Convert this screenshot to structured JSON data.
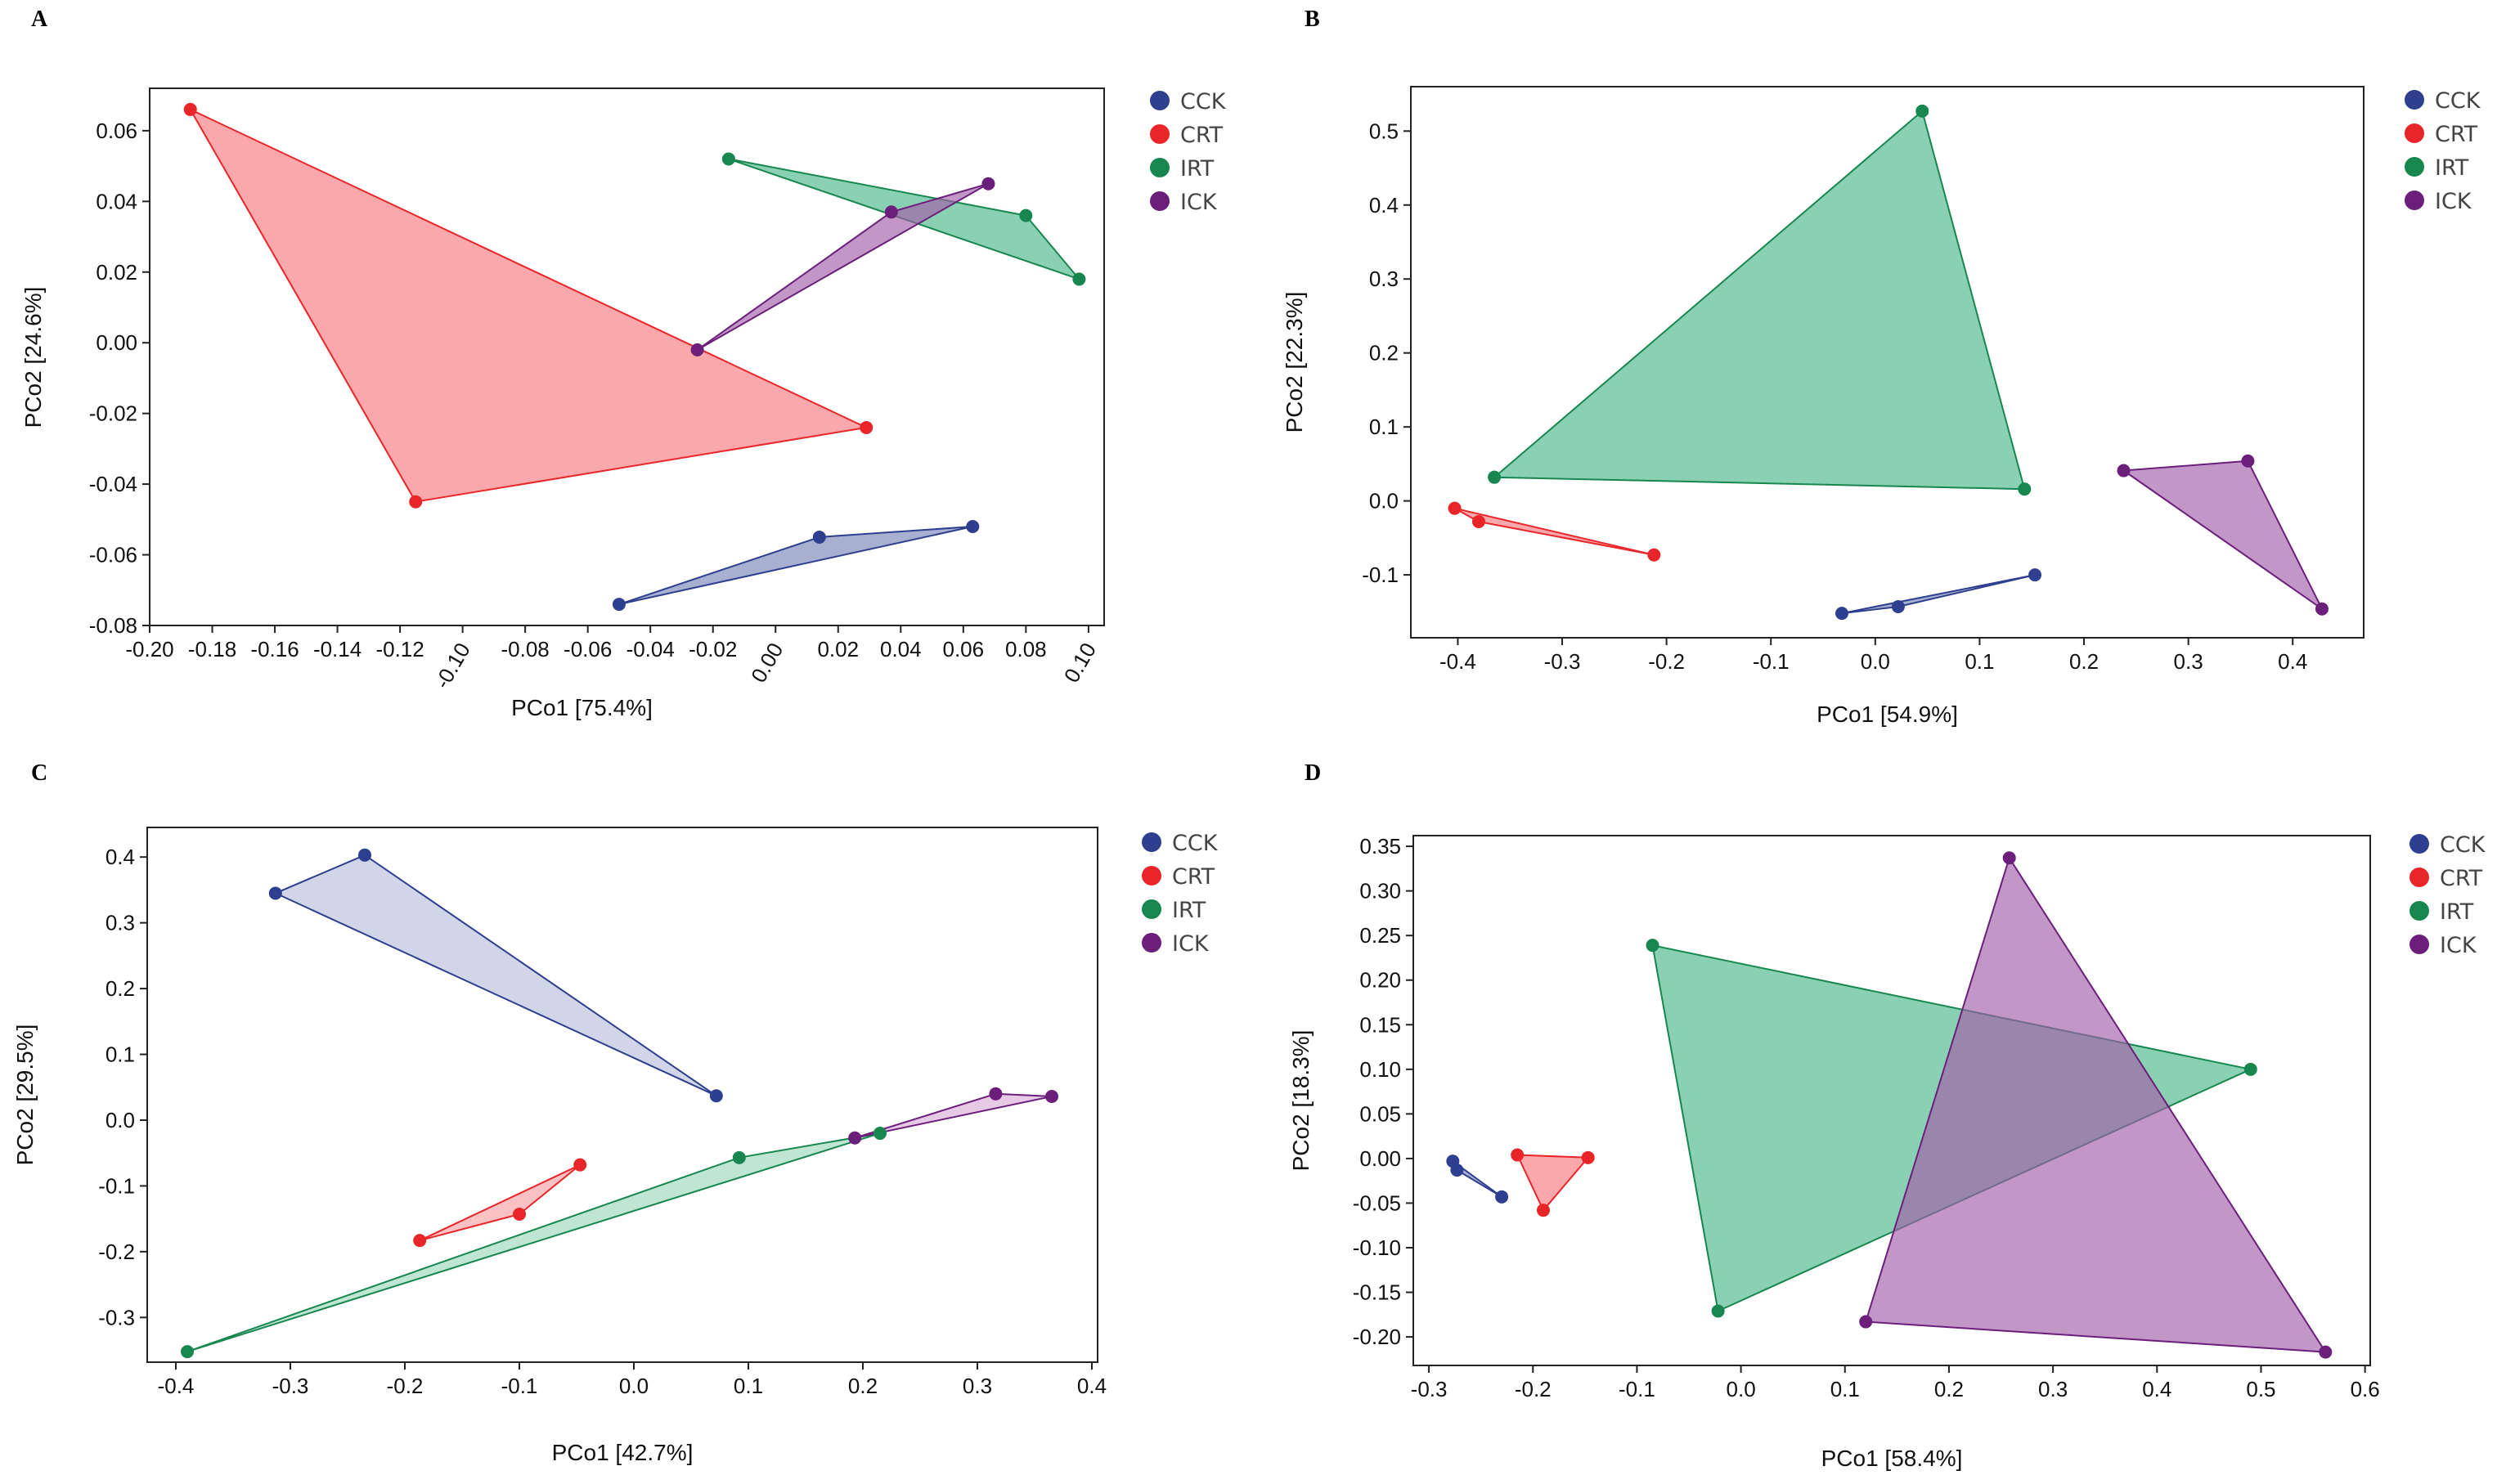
{
  "chart_data": [
    {
      "type": "scatter",
      "panel_label": "A",
      "title": "",
      "xlabel": "PCo1 [75.4%]",
      "ylabel": "PCo2 [24.6%]",
      "xlim": [
        -0.2,
        0.105
      ],
      "ylim": [
        -0.08,
        0.072
      ],
      "xticks": [
        -0.2,
        -0.18,
        -0.16,
        -0.14,
        -0.12,
        -0.1,
        -0.08,
        -0.06,
        -0.04,
        -0.02,
        0.0,
        0.02,
        0.04,
        0.06,
        0.08,
        0.1
      ],
      "xtick_labels": [
        "-0.20",
        "-0.18",
        "-0.16",
        "-0.14",
        "-0.12",
        "-0.10",
        "-0.08",
        "-0.06",
        "-0.04",
        "-0.02",
        "0.00",
        "0.02",
        "0.04",
        "0.06",
        "0.08",
        "0.10"
      ],
      "rotated_xticks": [
        "-0.10",
        "0.00",
        "0.10"
      ],
      "yticks": [
        -0.08,
        -0.06,
        -0.04,
        -0.02,
        0.0,
        0.02,
        0.04,
        0.06
      ],
      "ytick_labels": [
        "-0.08",
        "-0.06",
        "-0.04",
        "-0.02",
        "0.00",
        "0.02",
        "0.04",
        "0.06"
      ],
      "legend": [
        "CCK",
        "CRT",
        "IRT",
        "ICK"
      ],
      "legend_position": "right",
      "series": [
        {
          "name": "CCK",
          "color": "#2e3f8f",
          "fill": "#7986b8",
          "points": [
            [
              -0.05,
              -0.074
            ],
            [
              0.014,
              -0.055
            ],
            [
              0.063,
              -0.052
            ]
          ]
        },
        {
          "name": "CRT",
          "color": "#e8262a",
          "fill": "#f87a7e",
          "points": [
            [
              -0.187,
              0.066
            ],
            [
              -0.115,
              -0.045
            ],
            [
              0.029,
              -0.024
            ]
          ]
        },
        {
          "name": "IRT",
          "color": "#17874f",
          "fill": "#4cb98b",
          "points": [
            [
              -0.015,
              0.052
            ],
            [
              0.08,
              0.036
            ],
            [
              0.097,
              0.018
            ]
          ]
        },
        {
          "name": "ICK",
          "color": "#6b1f7a",
          "fill": "#a35eaa",
          "points": [
            [
              -0.025,
              -0.002
            ],
            [
              0.037,
              0.037
            ],
            [
              0.068,
              0.045
            ]
          ]
        }
      ]
    },
    {
      "type": "scatter",
      "panel_label": "B",
      "title": "",
      "xlabel": "PCo1 [54.9%]",
      "ylabel": "PCo2 [22.3%]",
      "xlim": [
        -0.445,
        0.468
      ],
      "ylim": [
        -0.185,
        0.56
      ],
      "xticks": [
        -0.4,
        -0.3,
        -0.2,
        -0.1,
        0.0,
        0.1,
        0.2,
        0.3,
        0.4
      ],
      "xtick_labels": [
        "-0.4",
        "-0.3",
        "-0.2",
        "-0.1",
        "0.0",
        "0.1",
        "0.2",
        "0.3",
        "0.4"
      ],
      "rotated_xticks": [],
      "yticks": [
        -0.1,
        0.0,
        0.1,
        0.2,
        0.3,
        0.4,
        0.5
      ],
      "ytick_labels": [
        "-0.1",
        "0.0",
        "0.1",
        "0.2",
        "0.3",
        "0.4",
        "0.5"
      ],
      "legend": [
        "CCK",
        "CRT",
        "IRT",
        "ICK"
      ],
      "legend_position": "right",
      "series": [
        {
          "name": "CCK",
          "color": "#2e3f8f",
          "fill": "#7986b8",
          "points": [
            [
              -0.032,
              -0.152
            ],
            [
              0.022,
              -0.143
            ],
            [
              0.153,
              -0.1
            ]
          ]
        },
        {
          "name": "CRT",
          "color": "#e8262a",
          "fill": "#f87a7e",
          "points": [
            [
              -0.403,
              -0.01
            ],
            [
              -0.38,
              -0.028
            ],
            [
              -0.212,
              -0.073
            ]
          ]
        },
        {
          "name": "IRT",
          "color": "#17874f",
          "fill": "#4cb98b",
          "points": [
            [
              -0.365,
              0.032
            ],
            [
              0.045,
              0.527
            ],
            [
              0.143,
              0.016
            ]
          ]
        },
        {
          "name": "ICK",
          "color": "#6b1f7a",
          "fill": "#a35eaa",
          "points": [
            [
              0.238,
              0.041
            ],
            [
              0.357,
              0.054
            ],
            [
              0.428,
              -0.146
            ]
          ]
        }
      ]
    },
    {
      "type": "scatter",
      "panel_label": "C",
      "title": "",
      "xlabel": "PCo1 [42.7%]",
      "ylabel": "PCo2 [29.5%]",
      "xlim": [
        -0.425,
        0.405
      ],
      "ylim": [
        -0.368,
        0.445
      ],
      "xticks": [
        -0.4,
        -0.3,
        -0.2,
        -0.1,
        0.0,
        0.1,
        0.2,
        0.3,
        0.4
      ],
      "xtick_labels": [
        "-0.4",
        "-0.3",
        "-0.2",
        "-0.1",
        "0.0",
        "0.1",
        "0.2",
        "0.3",
        "0.4"
      ],
      "rotated_xticks": [],
      "yticks": [
        -0.3,
        -0.2,
        -0.1,
        0.0,
        0.1,
        0.2,
        0.3,
        0.4
      ],
      "ytick_labels": [
        "-0.3",
        "-0.2",
        "-0.1",
        "0.0",
        "0.1",
        "0.2",
        "0.3",
        "0.4"
      ],
      "legend": [
        "CCK",
        "CRT",
        "IRT",
        "ICK"
      ],
      "legend_position": "right",
      "series": [
        {
          "name": "CCK",
          "color": "#2e3f8f",
          "fill": "#b9bfdc",
          "points": [
            [
              -0.313,
              0.345
            ],
            [
              -0.235,
              0.403
            ],
            [
              0.072,
              0.037
            ]
          ]
        },
        {
          "name": "CRT",
          "color": "#e8262a",
          "fill": "#f8a2a4",
          "points": [
            [
              -0.187,
              -0.183
            ],
            [
              -0.1,
              -0.143
            ],
            [
              -0.047,
              -0.068
            ]
          ]
        },
        {
          "name": "IRT",
          "color": "#17874f",
          "fill": "#9cd8bb",
          "points": [
            [
              -0.39,
              -0.352
            ],
            [
              0.092,
              -0.057
            ],
            [
              0.215,
              -0.02
            ]
          ]
        },
        {
          "name": "ICK",
          "color": "#6b1f7a",
          "fill": "#d7acd7",
          "points": [
            [
              0.193,
              -0.027
            ],
            [
              0.316,
              0.04
            ],
            [
              0.365,
              0.036
            ]
          ]
        }
      ]
    },
    {
      "type": "scatter",
      "panel_label": "D",
      "title": "",
      "xlabel": "PCo1 [58.4%]",
      "ylabel": "PCo2 [18.3%]",
      "xlim": [
        -0.315,
        0.605
      ],
      "ylim": [
        -0.232,
        0.362
      ],
      "xticks": [
        -0.3,
        -0.2,
        -0.1,
        0.0,
        0.1,
        0.2,
        0.3,
        0.4,
        0.5,
        0.6
      ],
      "xtick_labels": [
        "-0.3",
        "-0.2",
        "-0.1",
        "0.0",
        "0.1",
        "0.2",
        "0.3",
        "0.4",
        "0.5",
        "0.6"
      ],
      "rotated_xticks": [],
      "yticks": [
        -0.2,
        -0.15,
        -0.1,
        -0.05,
        0.0,
        0.05,
        0.1,
        0.15,
        0.2,
        0.25,
        0.3,
        0.35
      ],
      "ytick_labels": [
        "-0.20",
        "-0.15",
        "-0.10",
        "-0.05",
        "0.00",
        "0.05",
        "0.10",
        "0.15",
        "0.20",
        "0.25",
        "0.30",
        "0.35"
      ],
      "legend": [
        "CCK",
        "CRT",
        "IRT",
        "ICK"
      ],
      "legend_position": "right",
      "series": [
        {
          "name": "CCK",
          "color": "#2e3f8f",
          "fill": "#7986b8",
          "points": [
            [
              -0.277,
              -0.003
            ],
            [
              -0.273,
              -0.013
            ],
            [
              -0.23,
              -0.043
            ]
          ]
        },
        {
          "name": "CRT",
          "color": "#e8262a",
          "fill": "#f87a7e",
          "points": [
            [
              -0.215,
              0.004
            ],
            [
              -0.19,
              -0.058
            ],
            [
              -0.147,
              0.001
            ]
          ]
        },
        {
          "name": "IRT",
          "color": "#17874f",
          "fill": "#4cb98b",
          "points": [
            [
              -0.085,
              0.239
            ],
            [
              -0.022,
              -0.171
            ],
            [
              0.49,
              0.1
            ]
          ]
        },
        {
          "name": "ICK",
          "color": "#6b1f7a",
          "fill": "#a35eaa",
          "points": [
            [
              0.12,
              -0.183
            ],
            [
              0.258,
              0.337
            ],
            [
              0.562,
              -0.217
            ]
          ]
        }
      ]
    }
  ]
}
